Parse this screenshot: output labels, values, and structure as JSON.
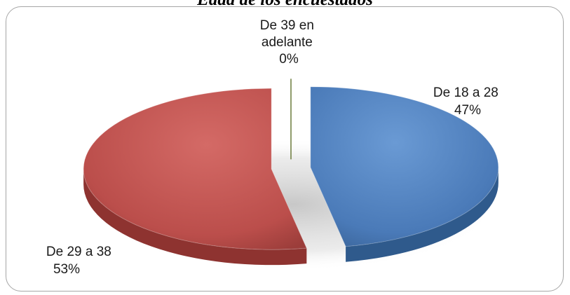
{
  "chart_data": {
    "type": "pie",
    "title": "Edad de los encuestados",
    "slices": [
      {
        "name": "De 18 a 28",
        "value": 47,
        "percent_label": "47%",
        "color": "#4f81bd"
      },
      {
        "name": "De 29 a 38",
        "value": 53,
        "percent_label": "53%",
        "color": "#c0504d"
      },
      {
        "name": "De 39 en adelante",
        "value": 0,
        "percent_label": "0%",
        "color": "#9bbb59"
      }
    ],
    "label_lines": {
      "slice_0": [
        "De 18 a 28",
        "47%"
      ],
      "slice_1": [
        "De 29 a 38",
        "53%"
      ],
      "slice_2": [
        "De 39 en",
        "adelante",
        "0%"
      ]
    },
    "style": "3d-exploded",
    "legend": "none"
  }
}
